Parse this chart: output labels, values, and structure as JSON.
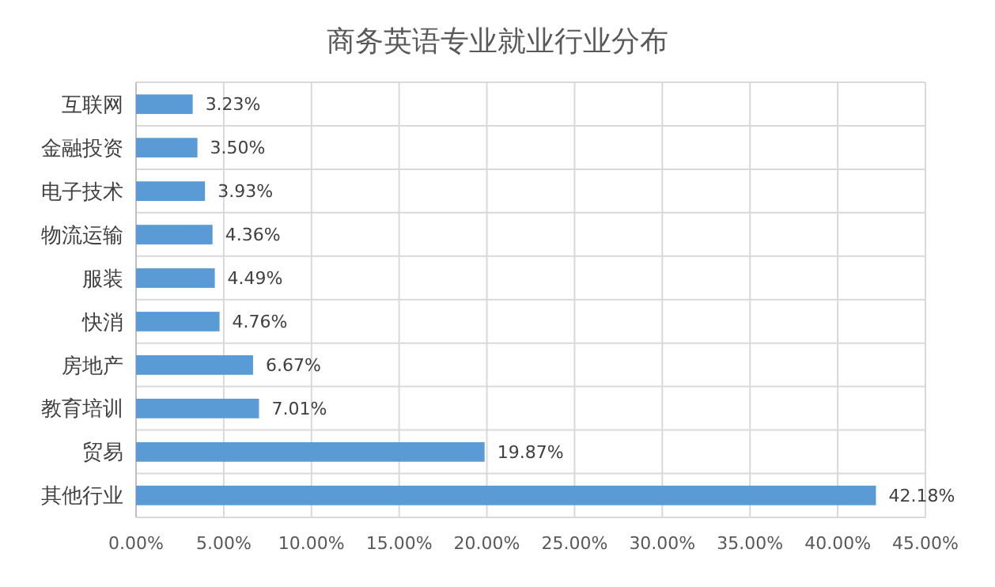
{
  "chart_data": {
    "type": "bar",
    "orientation": "horizontal",
    "title": "商务英语专业就业行业分布",
    "categories": [
      "互联网",
      "金融投资",
      "电子技术",
      "物流运输",
      "服装",
      "快消",
      "房地产",
      "教育培训",
      "贸易",
      "其他行业"
    ],
    "values": [
      3.23,
      3.5,
      3.93,
      4.36,
      4.49,
      4.76,
      6.67,
      7.01,
      19.87,
      42.18
    ],
    "value_labels": [
      "3.23%",
      "3.50%",
      "3.93%",
      "4.36%",
      "4.49%",
      "4.76%",
      "6.67%",
      "7.01%",
      "19.87%",
      "42.18%"
    ],
    "color": "#5b9bd5",
    "xlim": [
      0,
      45
    ],
    "xticks": [
      {
        "value": 0,
        "label": "0.00%"
      },
      {
        "value": 5,
        "label": "5.00%"
      },
      {
        "value": 10,
        "label": "10.00%"
      },
      {
        "value": 15,
        "label": "15.00%"
      },
      {
        "value": 20,
        "label": "20.00%"
      },
      {
        "value": 25,
        "label": "25.00%"
      },
      {
        "value": 30,
        "label": "30.00%"
      },
      {
        "value": 35,
        "label": "35.00%"
      },
      {
        "value": 40,
        "label": "40.00%"
      },
      {
        "value": 45,
        "label": "45.00%"
      }
    ],
    "grid": "x"
  }
}
